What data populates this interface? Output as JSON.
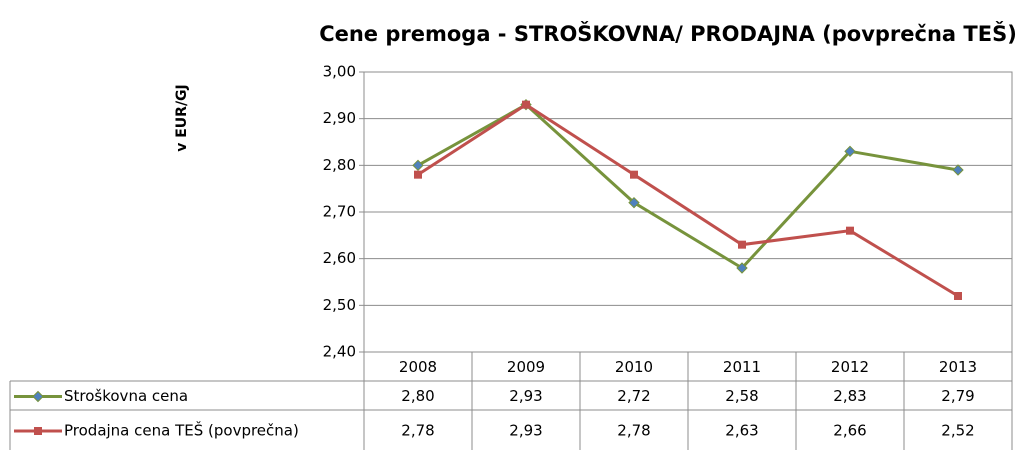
{
  "chart_data": {
    "type": "line",
    "title": "Cene premoga - STROŠKOVNA/ PRODAJNA (povprečna TEŠ)",
    "y_label": "v EUR/GJ",
    "categories": [
      "2008",
      "2009",
      "2010",
      "2011",
      "2012",
      "2013"
    ],
    "series": [
      {
        "name": "Stroškovna cena",
        "color": "#77933c",
        "marker_color": "#4f81bd",
        "marker": "diamond",
        "values": [
          2.8,
          2.93,
          2.72,
          2.58,
          2.83,
          2.79
        ],
        "value_labels": [
          "2,80",
          "2,93",
          "2,72",
          "2,58",
          "2,83",
          "2,79"
        ]
      },
      {
        "name": "Prodajna cena TEŠ (povprečna)",
        "color": "#c0504d",
        "marker_color": "#c0504d",
        "marker": "square",
        "values": [
          2.78,
          2.93,
          2.78,
          2.63,
          2.66,
          2.52
        ],
        "value_labels": [
          "2,78",
          "2,93",
          "2,78",
          "2,63",
          "2,66",
          "2,52"
        ]
      }
    ],
    "ylim": [
      2.4,
      3.0
    ],
    "yticks": [
      {
        "value": 2.4,
        "label": "2,40"
      },
      {
        "value": 2.5,
        "label": "2,50"
      },
      {
        "value": 2.6,
        "label": "2,60"
      },
      {
        "value": 2.7,
        "label": "2,70"
      },
      {
        "value": 2.8,
        "label": "2,80"
      },
      {
        "value": 2.9,
        "label": "2,90"
      },
      {
        "value": 3.0,
        "label": "3,00"
      }
    ],
    "grid": true
  }
}
